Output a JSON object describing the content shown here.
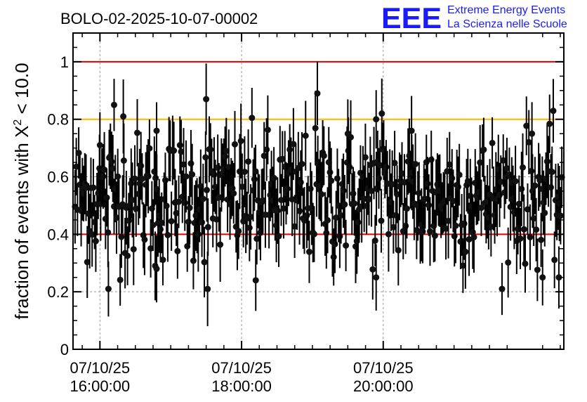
{
  "chart_data": {
    "type": "scatter",
    "title": "BOLO-02-2025-10-07-00002",
    "ylabel_prefix": "fraction of events with ",
    "ylabel_symbol": "X",
    "ylabel_exponent": "2",
    "ylabel_suffix": " < 10.0",
    "xlabel": "",
    "ylim": [
      0,
      1.1
    ],
    "yticks": [
      0,
      0.2,
      0.4,
      0.6,
      0.8,
      1
    ],
    "ytick_labels": [
      "0",
      "0.2",
      "0.4",
      "0.6",
      "0.8",
      "1"
    ],
    "x_unit": "hours",
    "xlim": [
      15.62,
      22.55
    ],
    "xticks": [
      {
        "x": 16.0,
        "date": "07/10/25",
        "time": "16:00:00"
      },
      {
        "x": 18.0,
        "date": "07/10/25",
        "time": "18:00:00"
      },
      {
        "x": 20.0,
        "date": "07/10/25",
        "time": "20:00:00"
      }
    ],
    "grid": "dashed",
    "reference_lines": [
      {
        "y": 1.0,
        "color": "#e00000"
      },
      {
        "y": 0.8,
        "color": "#ffb300"
      },
      {
        "y": 0.4,
        "color": "#e00000"
      }
    ],
    "series": {
      "name": "fraction",
      "n_points": 400,
      "mean": 0.53,
      "spread": 0.11,
      "error_halfwidth": 0.11,
      "min": 0.21,
      "max": 0.89,
      "notable_points": [
        {
          "x": 16.0,
          "y": 0.71
        },
        {
          "x": 16.2,
          "y": 0.85
        },
        {
          "x": 16.33,
          "y": 0.81
        },
        {
          "x": 16.8,
          "y": 0.76
        },
        {
          "x": 16.78,
          "y": 0.29
        },
        {
          "x": 16.8,
          "y": 0.28
        },
        {
          "x": 17.5,
          "y": 0.87
        },
        {
          "x": 17.52,
          "y": 0.21
        },
        {
          "x": 16.12,
          "y": 0.21
        },
        {
          "x": 18.2,
          "y": 0.24
        },
        {
          "x": 19.07,
          "y": 0.89
        },
        {
          "x": 19.5,
          "y": 0.75
        },
        {
          "x": 19.9,
          "y": 0.8
        },
        {
          "x": 19.98,
          "y": 0.82
        },
        {
          "x": 19.9,
          "y": 0.25
        },
        {
          "x": 20.4,
          "y": 0.76
        },
        {
          "x": 22.1,
          "y": 0.75
        },
        {
          "x": 22.25,
          "y": 0.25
        },
        {
          "x": 22.48,
          "y": 0.25
        }
      ]
    }
  },
  "logo": {
    "mark": "EEE",
    "line1": "Extreme Energy Events",
    "line2": "La Scienza nelle Scuole"
  }
}
